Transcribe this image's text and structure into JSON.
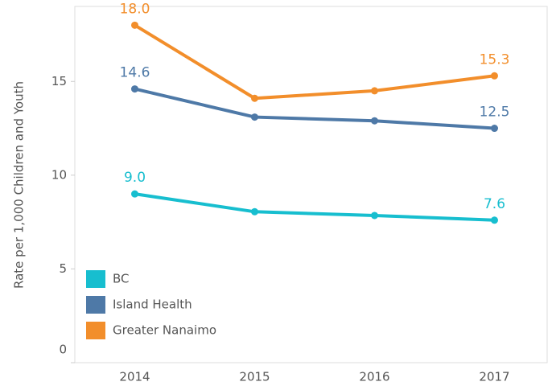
{
  "chart_data": {
    "type": "line",
    "y_label": "Rate per 1,000 Children and Youth",
    "categories": [
      "2014",
      "2015",
      "2016",
      "2017"
    ],
    "series": [
      {
        "name": "BC",
        "color": "#17becf",
        "values": [
          9.0,
          8.05,
          7.85,
          7.6
        ],
        "value_labels": [
          "9.0",
          null,
          null,
          "7.6"
        ]
      },
      {
        "name": "Island Health",
        "color": "#4e79a7",
        "values": [
          14.6,
          13.1,
          12.9,
          12.5
        ],
        "value_labels": [
          "14.6",
          null,
          null,
          "12.5"
        ]
      },
      {
        "name": "Greater Nanaimo",
        "color": "#f28e2b",
        "values": [
          18.0,
          14.1,
          14.5,
          15.3
        ],
        "value_labels": [
          "18.0",
          null,
          null,
          "15.3"
        ]
      }
    ],
    "ylim": [
      0,
      19
    ],
    "yticks": [
      0,
      5,
      10,
      15
    ],
    "legend": "lower left"
  }
}
